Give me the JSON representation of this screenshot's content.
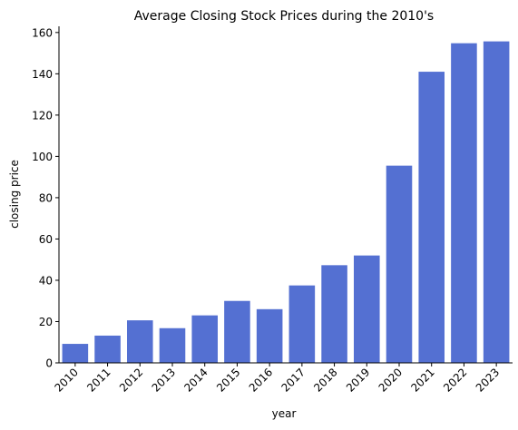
{
  "chart_data": {
    "type": "bar",
    "title": "Average Closing Stock Prices during the 2010's",
    "xlabel": "year",
    "ylabel": "closing price",
    "categories": [
      "2010",
      "2011",
      "2012",
      "2013",
      "2014",
      "2015",
      "2016",
      "2017",
      "2018",
      "2019",
      "2020",
      "2021",
      "2022",
      "2023"
    ],
    "values": [
      9.2,
      13.2,
      20.6,
      16.8,
      23.0,
      30.0,
      26.0,
      37.5,
      47.3,
      52.0,
      95.5,
      141.0,
      154.8,
      155.7
    ],
    "ylim": [
      0,
      163
    ],
    "yticks": [
      0,
      20,
      40,
      60,
      80,
      100,
      120,
      140,
      160
    ],
    "bar_color": "#5470d2",
    "grid": false,
    "spines": "left-bottom"
  }
}
